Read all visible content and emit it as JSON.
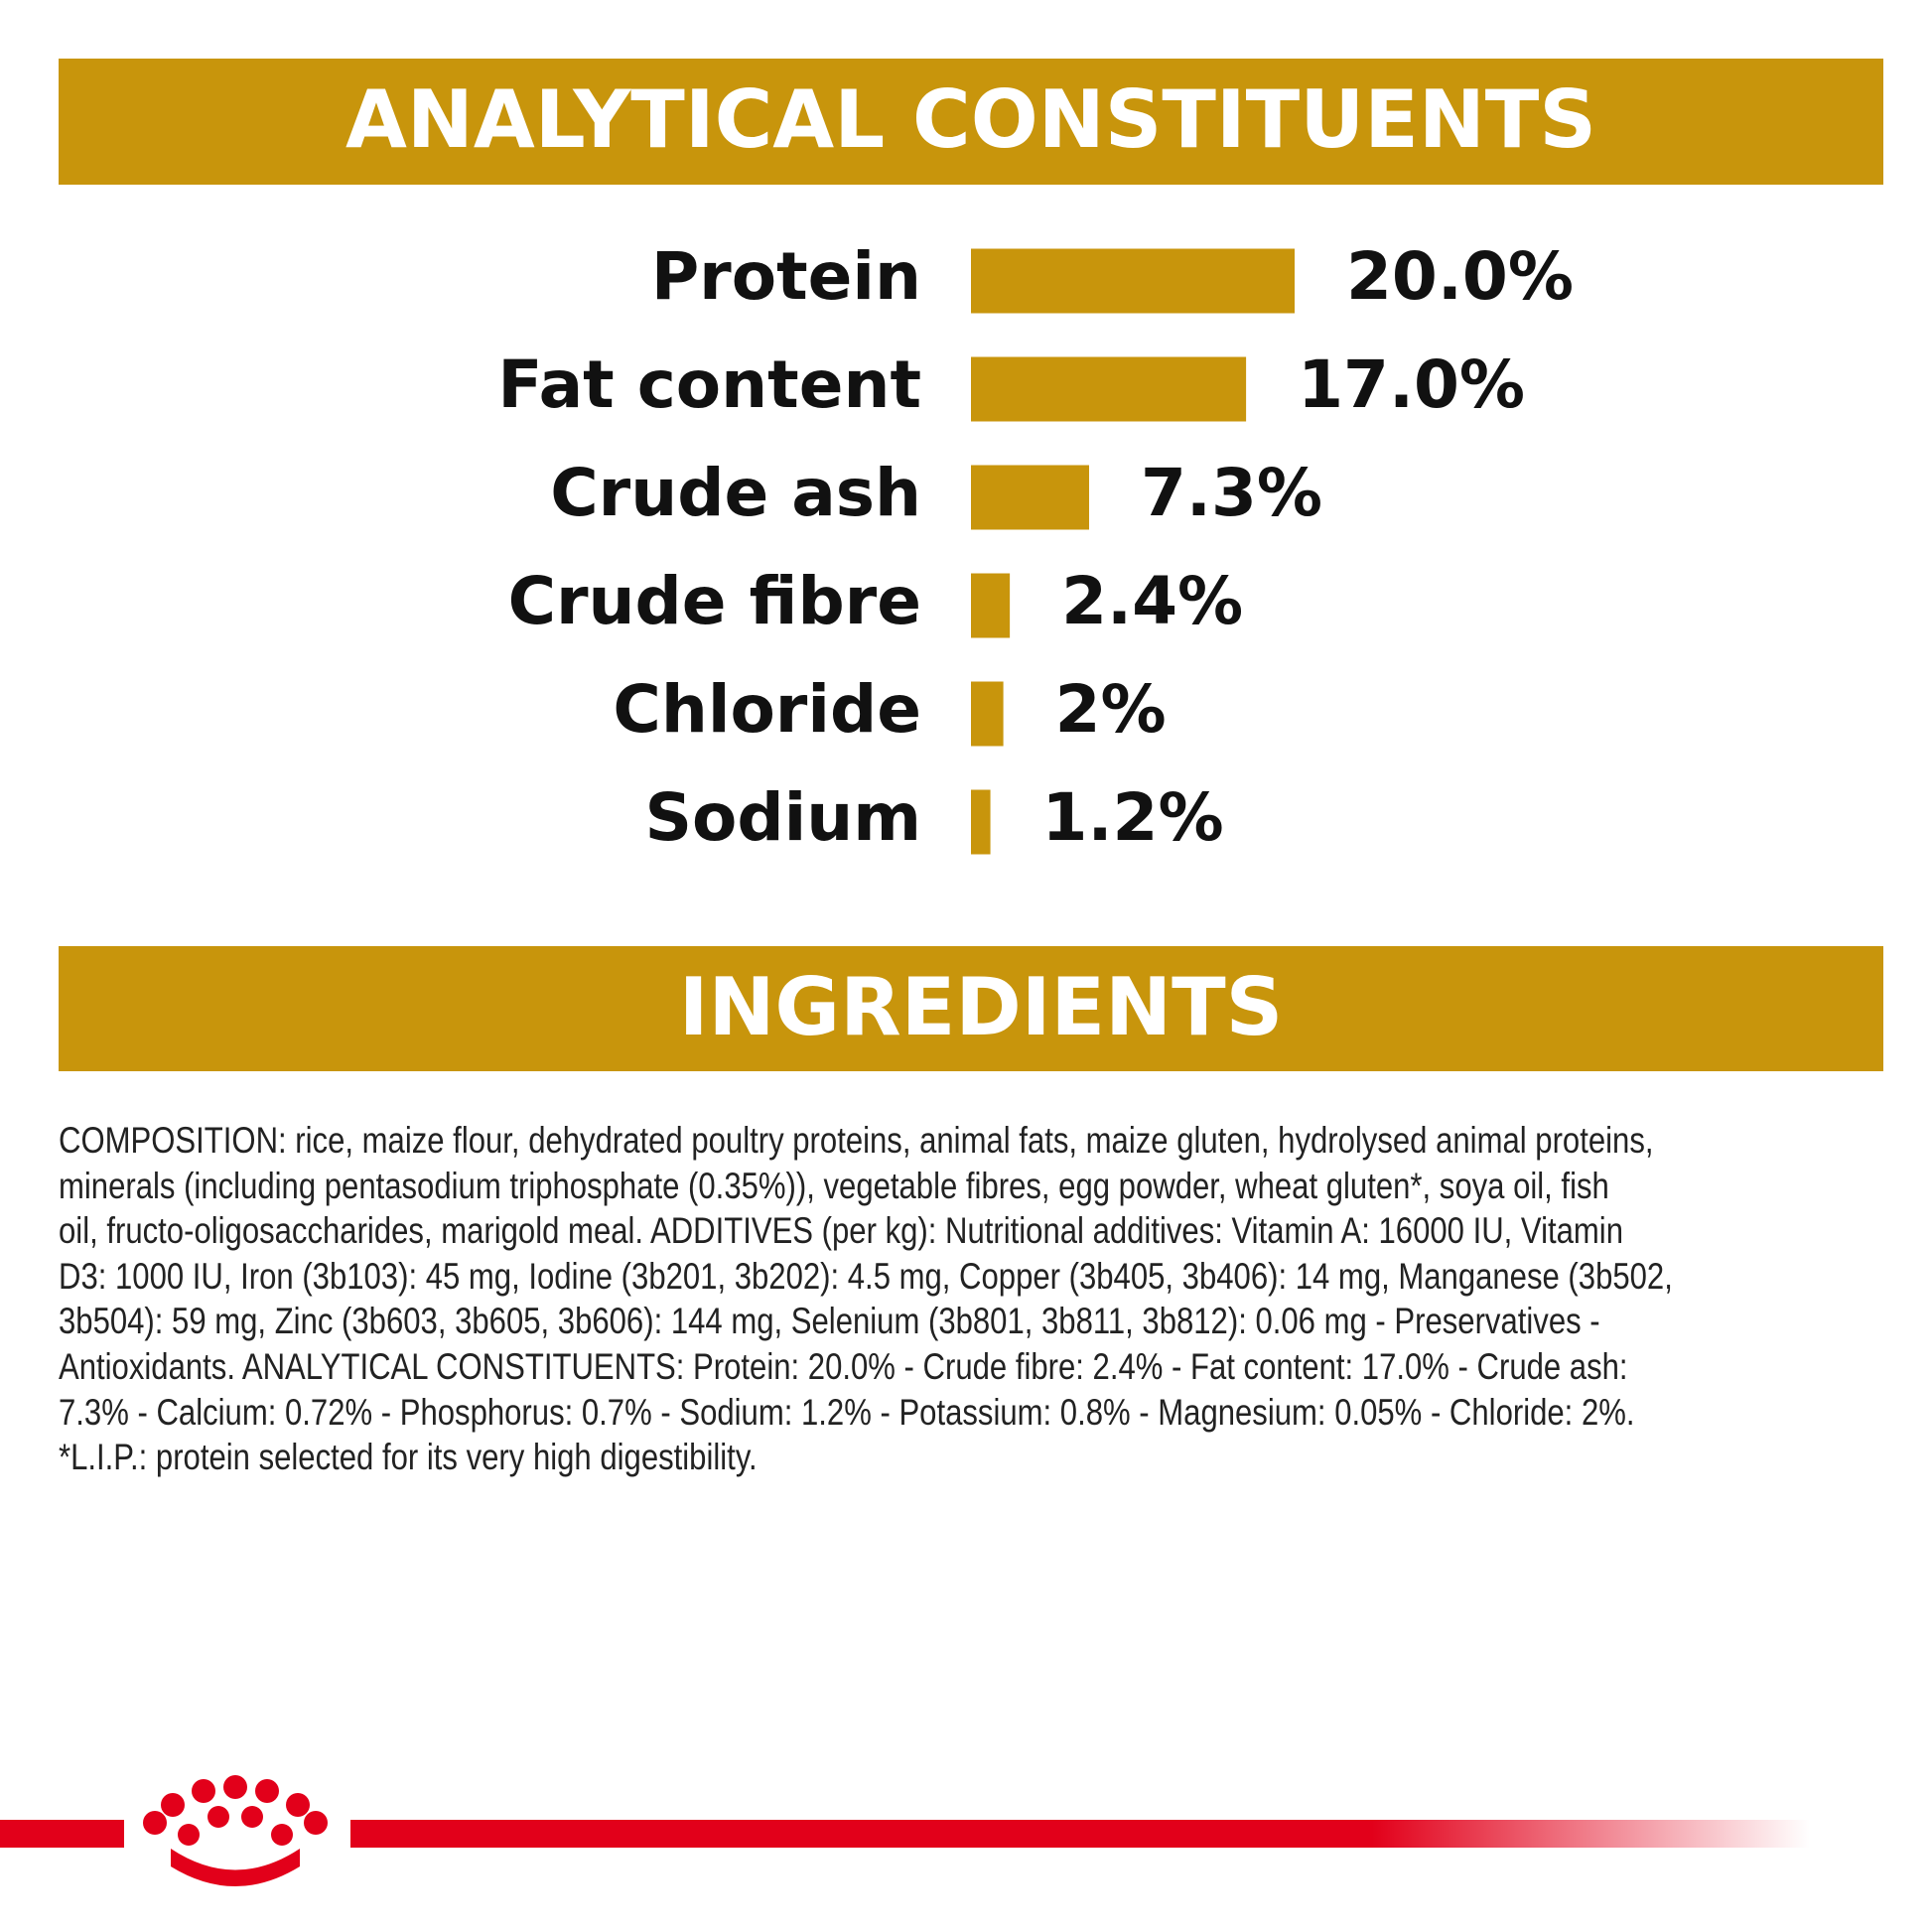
{
  "chart_data": {
    "type": "bar",
    "orientation": "horizontal",
    "title": "ANALYTICAL CONSTITUENTS",
    "categories": [
      "Protein",
      "Fat content",
      "Crude ash",
      "Crude fibre",
      "Chloride",
      "Sodium"
    ],
    "values": [
      20.0,
      17.0,
      7.3,
      2.4,
      2,
      1.2
    ],
    "value_labels": [
      "20.0%",
      "17.0%",
      "7.3%",
      "2.4%",
      "2%",
      "1.2%"
    ],
    "color": "#c8950c"
  },
  "ingredients": {
    "title": "INGREDIENTS",
    "lines": [
      "COMPOSITION: rice, maize flour, dehydrated poultry proteins, animal fats, maize gluten, hydrolysed animal proteins,",
      "minerals (including pentasodium triphosphate (0.35%)), vegetable fibres, egg powder, wheat gluten*, soya oil, fish",
      "oil, fructo-oligosaccharides, marigold meal. ADDITIVES (per kg): Nutritional additives: Vitamin A: 16000 IU, Vitamin",
      "D3: 1000 IU, Iron (3b103): 45 mg, Iodine (3b201, 3b202): 4.5 mg, Copper (3b405, 3b406): 14 mg, Manganese (3b502,",
      "3b504): 59 mg, Zinc (3b603, 3b605, 3b606): 144 mg, Selenium (3b801, 3b811, 3b812): 0.06 mg - Preservatives -",
      "Antioxidants. ANALYTICAL CONSTITUENTS: Protein: 20.0% - Crude fibre: 2.4% - Fat content: 17.0% - Crude ash:",
      "7.3% - Calcium: 0.72% - Phosphorus: 0.7% - Sodium: 1.2% - Potassium: 0.8% - Magnesium: 0.05% - Chloride: 2%.",
      "*L.I.P.: protein selected for its very high digestibility."
    ]
  }
}
